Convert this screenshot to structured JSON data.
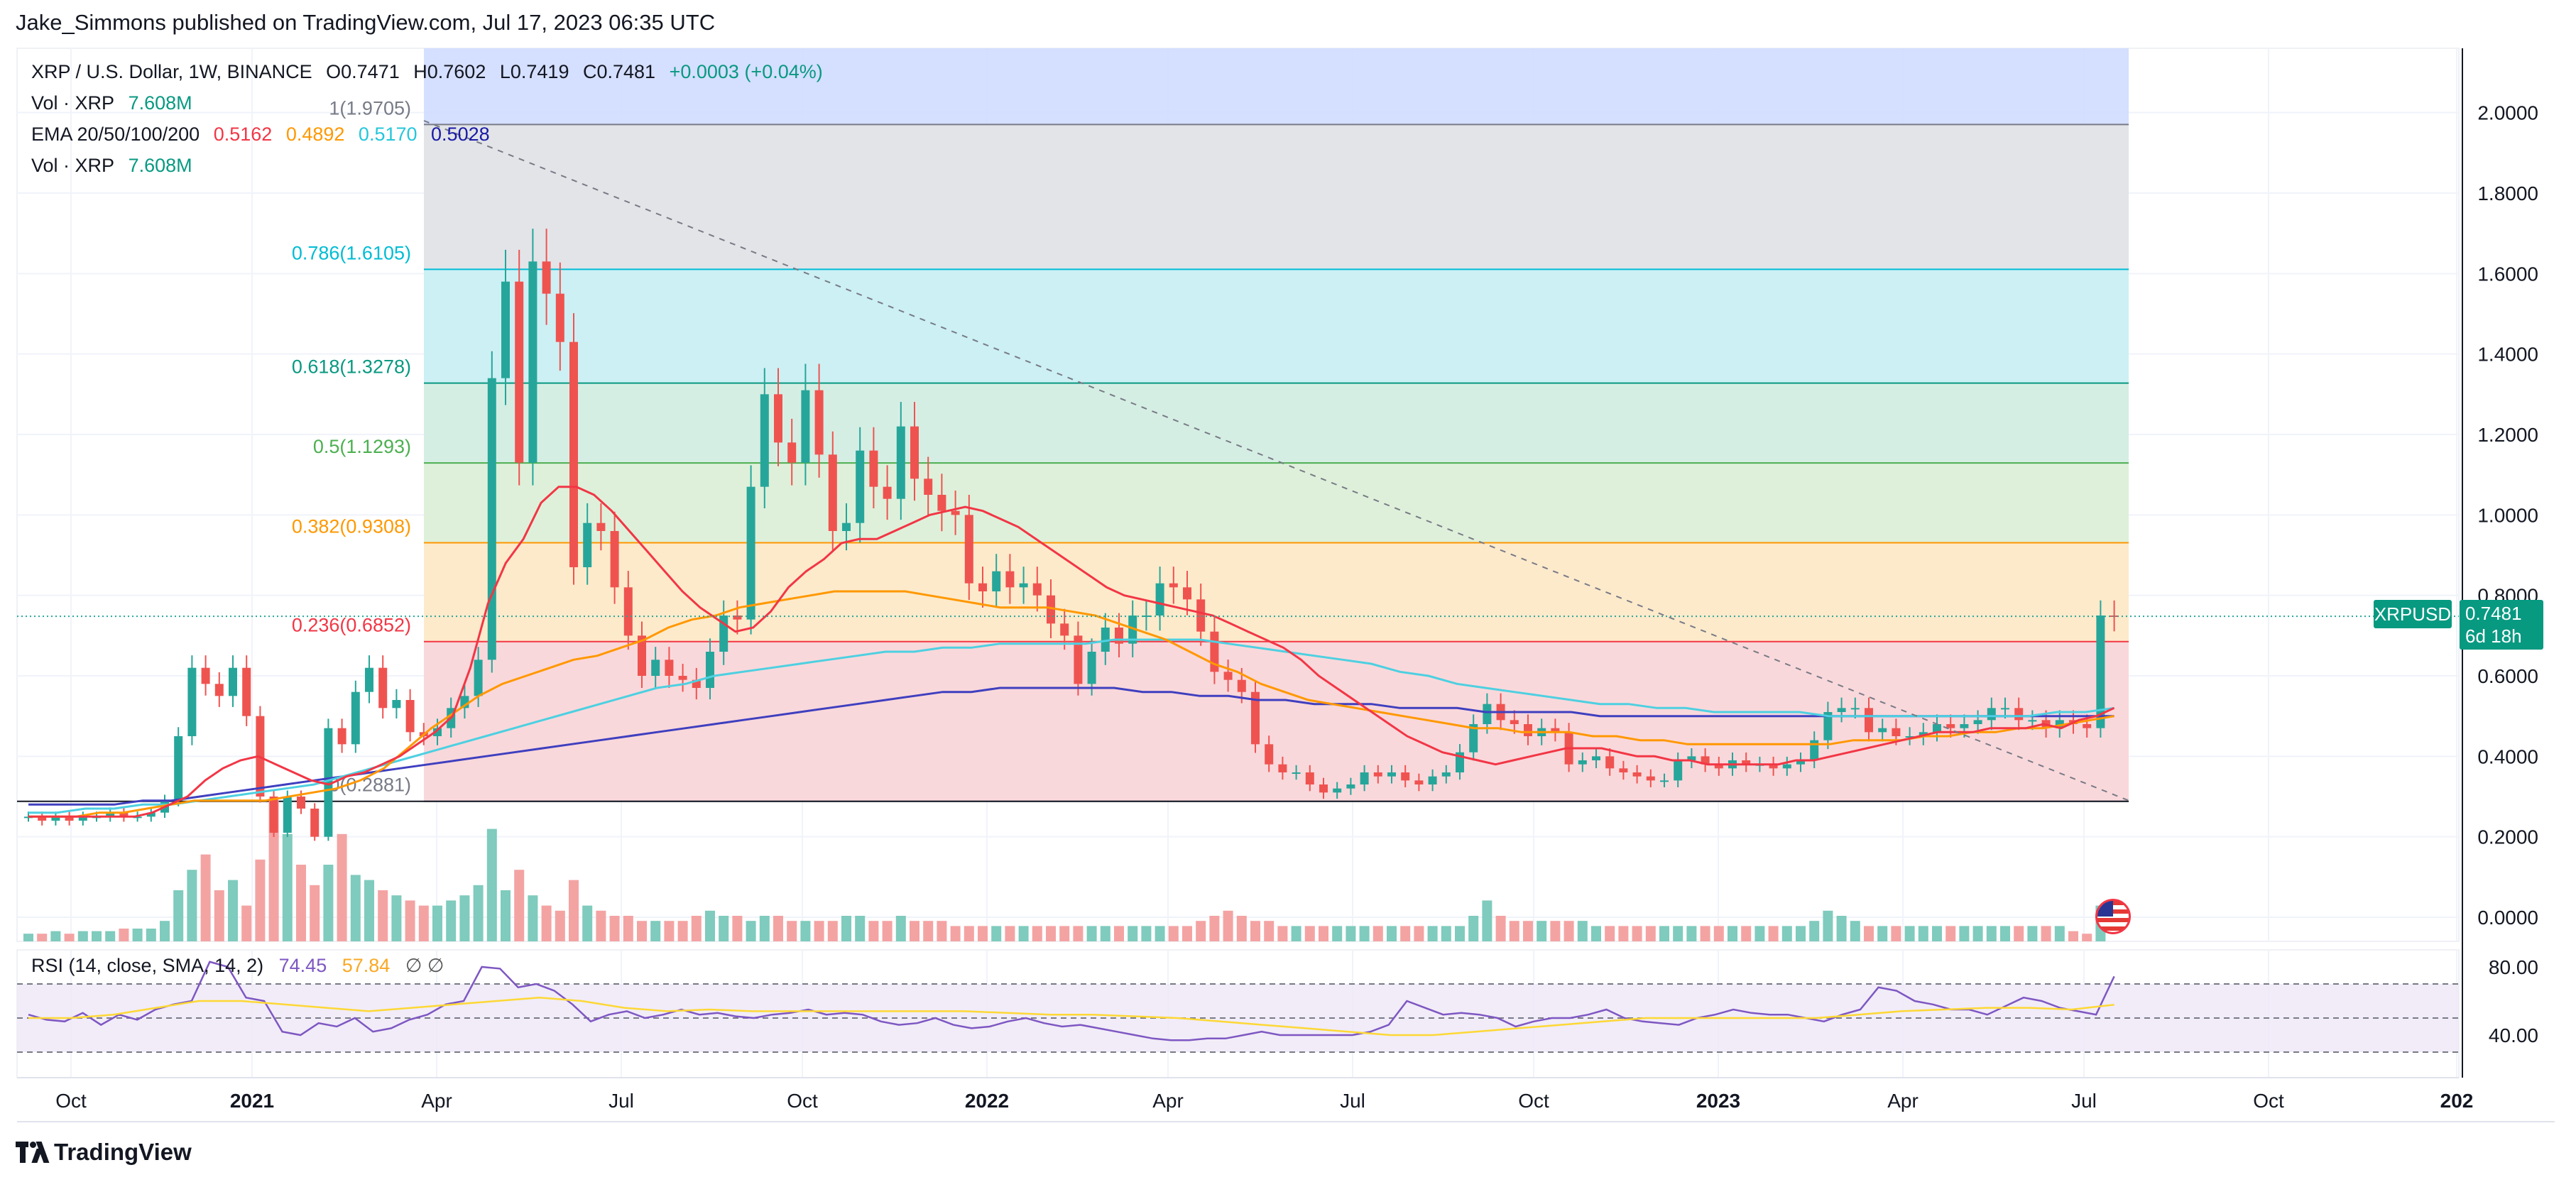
{
  "header": {
    "published_by": "Jake_Simmons published on TradingView.com, Jul 17, 2023 06:35 UTC"
  },
  "legend": {
    "symbol": "XRP / U.S. Dollar, 1W, BINANCE",
    "open": "O0.7471",
    "high": "H0.7602",
    "low": "L0.7419",
    "close": "C0.7481",
    "change": "+0.0003 (+0.04%)",
    "vol1_label": "Vol · XRP",
    "vol1_value": "7.608M",
    "ema_label": "EMA 20/50/100/200",
    "ema20": "0.5162",
    "ema50": "0.4892",
    "ema100": "0.5170",
    "ema200": "0.5028",
    "vol2_label": "Vol · XRP",
    "vol2_value": "7.608M"
  },
  "rsi_legend": {
    "label": "RSI (14, close, SMA, 14, 2)",
    "rsi": "74.45",
    "sma": "57.84",
    "icons": "∅ ∅"
  },
  "symbol_badge": "XRPUSD",
  "price_badge": {
    "price": "0.7481",
    "countdown": "6d 18h"
  },
  "footer": {
    "brand": "TradingView"
  },
  "colors": {
    "up": "#26a69a",
    "down": "#ef5350",
    "ema20": "#f23645",
    "ema50": "#ff9800",
    "ema100": "#4dd0e1",
    "ema200": "#3f3fbf",
    "rsi": "#7e57c2",
    "rsi_sma": "#fdd835"
  },
  "chart_data": {
    "type": "candlestick",
    "x_axis": {
      "ticks": [
        "Oct",
        "2021",
        "Apr",
        "Jul",
        "Oct",
        "2022",
        "Apr",
        "Jul",
        "Oct",
        "2023",
        "Apr",
        "Jul",
        "Oct",
        "202"
      ]
    },
    "y_axis": {
      "ticks": [
        "2.0000",
        "1.8000",
        "1.6000",
        "1.4000",
        "1.2000",
        "1.0000",
        "0.8000",
        "0.6000",
        "0.4000",
        "0.2000",
        "0.0000"
      ],
      "ylim": [
        -0.06,
        2.16
      ]
    },
    "fib_levels": [
      {
        "label": "1(1.9705)",
        "value": 1.9705,
        "color": "#787b86",
        "fill": "#e0e3e7"
      },
      {
        "label": "0.786(1.6105)",
        "value": 1.6105,
        "color": "#00bcd4",
        "fill": "#c9eff3"
      },
      {
        "label": "0.618(1.3278)",
        "value": 1.3278,
        "color": "#089981",
        "fill": "#d3ede3"
      },
      {
        "label": "0.5(1.1293)",
        "value": 1.1293,
        "color": "#4caf50",
        "fill": "#dcefd8"
      },
      {
        "label": "0.382(0.9308)",
        "value": 0.9308,
        "color": "#ff9800",
        "fill": "#fde9c8"
      },
      {
        "label": "0.236(0.6852)",
        "value": 0.6852,
        "color": "#f23645",
        "fill": "#f9d6d9"
      },
      {
        "label": "0(0.2881)",
        "value": 0.2881,
        "color": "#787b86",
        "fill": null
      }
    ],
    "fib_top_fill": "#d0dcff",
    "trendline": {
      "from": {
        "week": 0,
        "value": 1.98
      },
      "to": {
        "week": 120,
        "value": 0.29
      }
    },
    "candles_close": [
      0.25,
      0.24,
      0.25,
      0.24,
      0.25,
      0.25,
      0.26,
      0.25,
      0.25,
      0.26,
      0.29,
      0.45,
      0.62,
      0.58,
      0.55,
      0.62,
      0.5,
      0.3,
      0.21,
      0.3,
      0.27,
      0.2,
      0.47,
      0.43,
      0.56,
      0.62,
      0.52,
      0.54,
      0.46,
      0.45,
      0.47,
      0.52,
      0.55,
      0.64,
      1.34,
      1.58,
      1.13,
      1.63,
      1.55,
      1.43,
      0.87,
      0.98,
      0.96,
      0.82,
      0.7,
      0.6,
      0.64,
      0.6,
      0.59,
      0.57,
      0.66,
      0.75,
      0.74,
      1.07,
      1.3,
      1.18,
      1.13,
      1.31,
      1.15,
      0.96,
      0.98,
      1.16,
      1.07,
      1.04,
      1.22,
      1.09,
      1.05,
      1.01,
      1.0,
      0.83,
      0.81,
      0.86,
      0.82,
      0.83,
      0.8,
      0.73,
      0.7,
      0.58,
      0.66,
      0.72,
      0.68,
      0.75,
      0.75,
      0.83,
      0.82,
      0.79,
      0.71,
      0.61,
      0.59,
      0.56,
      0.43,
      0.38,
      0.36,
      0.36,
      0.33,
      0.31,
      0.32,
      0.33,
      0.36,
      0.35,
      0.36,
      0.34,
      0.33,
      0.35,
      0.36,
      0.41,
      0.48,
      0.53,
      0.49,
      0.48,
      0.45,
      0.47,
      0.46,
      0.38,
      0.39,
      0.4,
      0.37,
      0.36,
      0.35,
      0.34,
      0.34,
      0.39,
      0.4,
      0.38,
      0.37,
      0.39,
      0.38,
      0.38,
      0.37,
      0.38,
      0.39,
      0.44,
      0.51,
      0.52,
      0.52,
      0.46,
      0.47,
      0.45,
      0.45,
      0.46,
      0.48,
      0.47,
      0.48,
      0.49,
      0.52,
      0.52,
      0.49,
      0.49,
      0.47,
      0.49,
      0.48,
      0.47,
      0.75,
      0.748
    ],
    "ema_20": [
      0.25,
      0.25,
      0.25,
      0.25,
      0.25,
      0.25,
      0.25,
      0.26,
      0.28,
      0.3,
      0.34,
      0.37,
      0.39,
      0.4,
      0.38,
      0.36,
      0.34,
      0.33,
      0.35,
      0.36,
      0.38,
      0.4,
      0.43,
      0.46,
      0.5,
      0.62,
      0.78,
      0.88,
      0.94,
      1.03,
      1.07,
      1.07,
      1.05,
      1.01,
      0.96,
      0.91,
      0.86,
      0.81,
      0.77,
      0.74,
      0.71,
      0.72,
      0.76,
      0.82,
      0.86,
      0.89,
      0.93,
      0.94,
      0.94,
      0.96,
      0.98,
      1.0,
      1.01,
      1.02,
      1.01,
      0.99,
      0.97,
      0.94,
      0.91,
      0.88,
      0.85,
      0.82,
      0.8,
      0.79,
      0.78,
      0.77,
      0.76,
      0.75,
      0.73,
      0.71,
      0.69,
      0.67,
      0.64,
      0.6,
      0.57,
      0.54,
      0.51,
      0.48,
      0.45,
      0.43,
      0.41,
      0.4,
      0.39,
      0.38,
      0.39,
      0.4,
      0.41,
      0.42,
      0.42,
      0.42,
      0.41,
      0.4,
      0.4,
      0.39,
      0.39,
      0.38,
      0.38,
      0.38,
      0.38,
      0.38,
      0.39,
      0.39,
      0.4,
      0.41,
      0.42,
      0.43,
      0.44,
      0.45,
      0.46,
      0.46,
      0.46,
      0.47,
      0.47,
      0.47,
      0.48,
      0.47,
      0.49,
      0.5,
      0.52
    ],
    "ema_50": [
      0.25,
      0.25,
      0.25,
      0.26,
      0.26,
      0.27,
      0.28,
      0.29,
      0.29,
      0.29,
      0.29,
      0.3,
      0.31,
      0.32,
      0.34,
      0.37,
      0.42,
      0.47,
      0.51,
      0.55,
      0.58,
      0.6,
      0.62,
      0.64,
      0.65,
      0.67,
      0.69,
      0.72,
      0.74,
      0.75,
      0.77,
      0.78,
      0.79,
      0.8,
      0.81,
      0.81,
      0.81,
      0.81,
      0.8,
      0.79,
      0.78,
      0.77,
      0.77,
      0.77,
      0.76,
      0.75,
      0.73,
      0.71,
      0.69,
      0.66,
      0.63,
      0.61,
      0.58,
      0.56,
      0.54,
      0.53,
      0.52,
      0.51,
      0.5,
      0.49,
      0.48,
      0.47,
      0.47,
      0.46,
      0.46,
      0.46,
      0.45,
      0.45,
      0.44,
      0.44,
      0.43,
      0.43,
      0.43,
      0.43,
      0.43,
      0.43,
      0.43,
      0.44,
      0.44,
      0.44,
      0.45,
      0.45,
      0.46,
      0.46,
      0.47,
      0.47,
      0.48,
      0.49,
      0.5
    ],
    "ema_100": [
      0.26,
      0.26,
      0.27,
      0.27,
      0.28,
      0.28,
      0.29,
      0.3,
      0.31,
      0.32,
      0.33,
      0.35,
      0.37,
      0.39,
      0.41,
      0.43,
      0.45,
      0.47,
      0.49,
      0.51,
      0.53,
      0.55,
      0.57,
      0.58,
      0.6,
      0.61,
      0.62,
      0.63,
      0.64,
      0.65,
      0.66,
      0.66,
      0.67,
      0.67,
      0.68,
      0.68,
      0.68,
      0.68,
      0.69,
      0.69,
      0.69,
      0.69,
      0.68,
      0.67,
      0.66,
      0.65,
      0.64,
      0.63,
      0.61,
      0.6,
      0.58,
      0.57,
      0.56,
      0.55,
      0.54,
      0.53,
      0.53,
      0.52,
      0.52,
      0.51,
      0.51,
      0.51,
      0.51,
      0.5,
      0.5,
      0.5,
      0.5,
      0.5,
      0.5,
      0.5,
      0.5,
      0.51,
      0.51,
      0.52
    ],
    "ema_200": [
      0.28,
      0.28,
      0.28,
      0.28,
      0.29,
      0.29,
      0.3,
      0.31,
      0.32,
      0.33,
      0.34,
      0.35,
      0.36,
      0.37,
      0.38,
      0.39,
      0.4,
      0.41,
      0.42,
      0.43,
      0.44,
      0.45,
      0.46,
      0.47,
      0.48,
      0.49,
      0.5,
      0.51,
      0.52,
      0.53,
      0.54,
      0.55,
      0.56,
      0.56,
      0.57,
      0.57,
      0.57,
      0.57,
      0.57,
      0.56,
      0.56,
      0.55,
      0.55,
      0.54,
      0.54,
      0.53,
      0.53,
      0.53,
      0.52,
      0.52,
      0.52,
      0.51,
      0.51,
      0.51,
      0.51,
      0.5,
      0.5,
      0.5,
      0.5,
      0.5,
      0.5,
      0.5,
      0.5,
      0.5,
      0.5,
      0.5,
      0.5,
      0.5,
      0.5,
      0.5,
      0.5,
      0.5,
      0.5,
      0.5
    ],
    "volume": [
      3,
      3,
      4,
      3,
      4,
      4,
      4,
      5,
      5,
      5,
      8,
      20,
      28,
      34,
      20,
      24,
      14,
      32,
      55,
      42,
      30,
      22,
      30,
      42,
      26,
      24,
      20,
      18,
      16,
      14,
      14,
      16,
      18,
      22,
      44,
      20,
      28,
      18,
      14,
      12,
      24,
      14,
      12,
      10,
      10,
      8,
      8,
      8,
      8,
      10,
      12,
      10,
      10,
      8,
      10,
      10,
      8,
      8,
      8,
      8,
      10,
      10,
      8,
      8,
      10,
      8,
      8,
      8,
      6,
      6,
      6,
      6,
      6,
      6,
      6,
      6,
      6,
      6,
      6,
      6,
      6,
      6,
      6,
      6,
      6,
      6,
      8,
      10,
      12,
      10,
      8,
      8,
      6,
      6,
      6,
      6,
      6,
      6,
      6,
      6,
      6,
      6,
      6,
      6,
      6,
      6,
      10,
      16,
      10,
      8,
      8,
      8,
      8,
      8,
      8,
      6,
      6,
      6,
      6,
      6,
      6,
      6,
      6,
      6,
      6,
      6,
      6,
      6,
      6,
      6,
      6,
      8,
      12,
      10,
      8,
      6,
      6,
      6,
      6,
      6,
      6,
      6,
      6,
      6,
      6,
      6,
      6,
      6,
      6,
      6,
      4,
      3,
      14
    ],
    "rsi": [
      52,
      49,
      48,
      53,
      46,
      52,
      49,
      55,
      58,
      60,
      83,
      80,
      62,
      60,
      42,
      40,
      47,
      45,
      50,
      42,
      44,
      49,
      52,
      58,
      60,
      80,
      79,
      68,
      70,
      66,
      58,
      48,
      52,
      54,
      50,
      52,
      55,
      52,
      53,
      51,
      50,
      52,
      53,
      55,
      52,
      53,
      52,
      48,
      46,
      47,
      50,
      46,
      44,
      45,
      48,
      50,
      47,
      45,
      46,
      44,
      42,
      40,
      38,
      37,
      37,
      38,
      38,
      40,
      42,
      40,
      40,
      40,
      40,
      40,
      42,
      46,
      60,
      56,
      52,
      53,
      52,
      50,
      45,
      48,
      50,
      50,
      52,
      55,
      50,
      48,
      47,
      46,
      50,
      52,
      55,
      53,
      52,
      52,
      50,
      48,
      52,
      55,
      68,
      66,
      60,
      58,
      55,
      55,
      52,
      57,
      62,
      60,
      56,
      54,
      52,
      74.45
    ],
    "rsi_sma": [
      50,
      50,
      52,
      56,
      60,
      60,
      58,
      56,
      54,
      56,
      58,
      60,
      62,
      60,
      56,
      54,
      55,
      54,
      54,
      54,
      54,
      54,
      54,
      53,
      52,
      52,
      51,
      50,
      48,
      46,
      44,
      42,
      40,
      40,
      42,
      44,
      46,
      48,
      50,
      50,
      50,
      50,
      50,
      52,
      54,
      55,
      56,
      56,
      55,
      57.84
    ],
    "rsi_levels": [
      70,
      50,
      30
    ],
    "rsi_axis_ticks": [
      "80.00",
      "40.00"
    ]
  }
}
